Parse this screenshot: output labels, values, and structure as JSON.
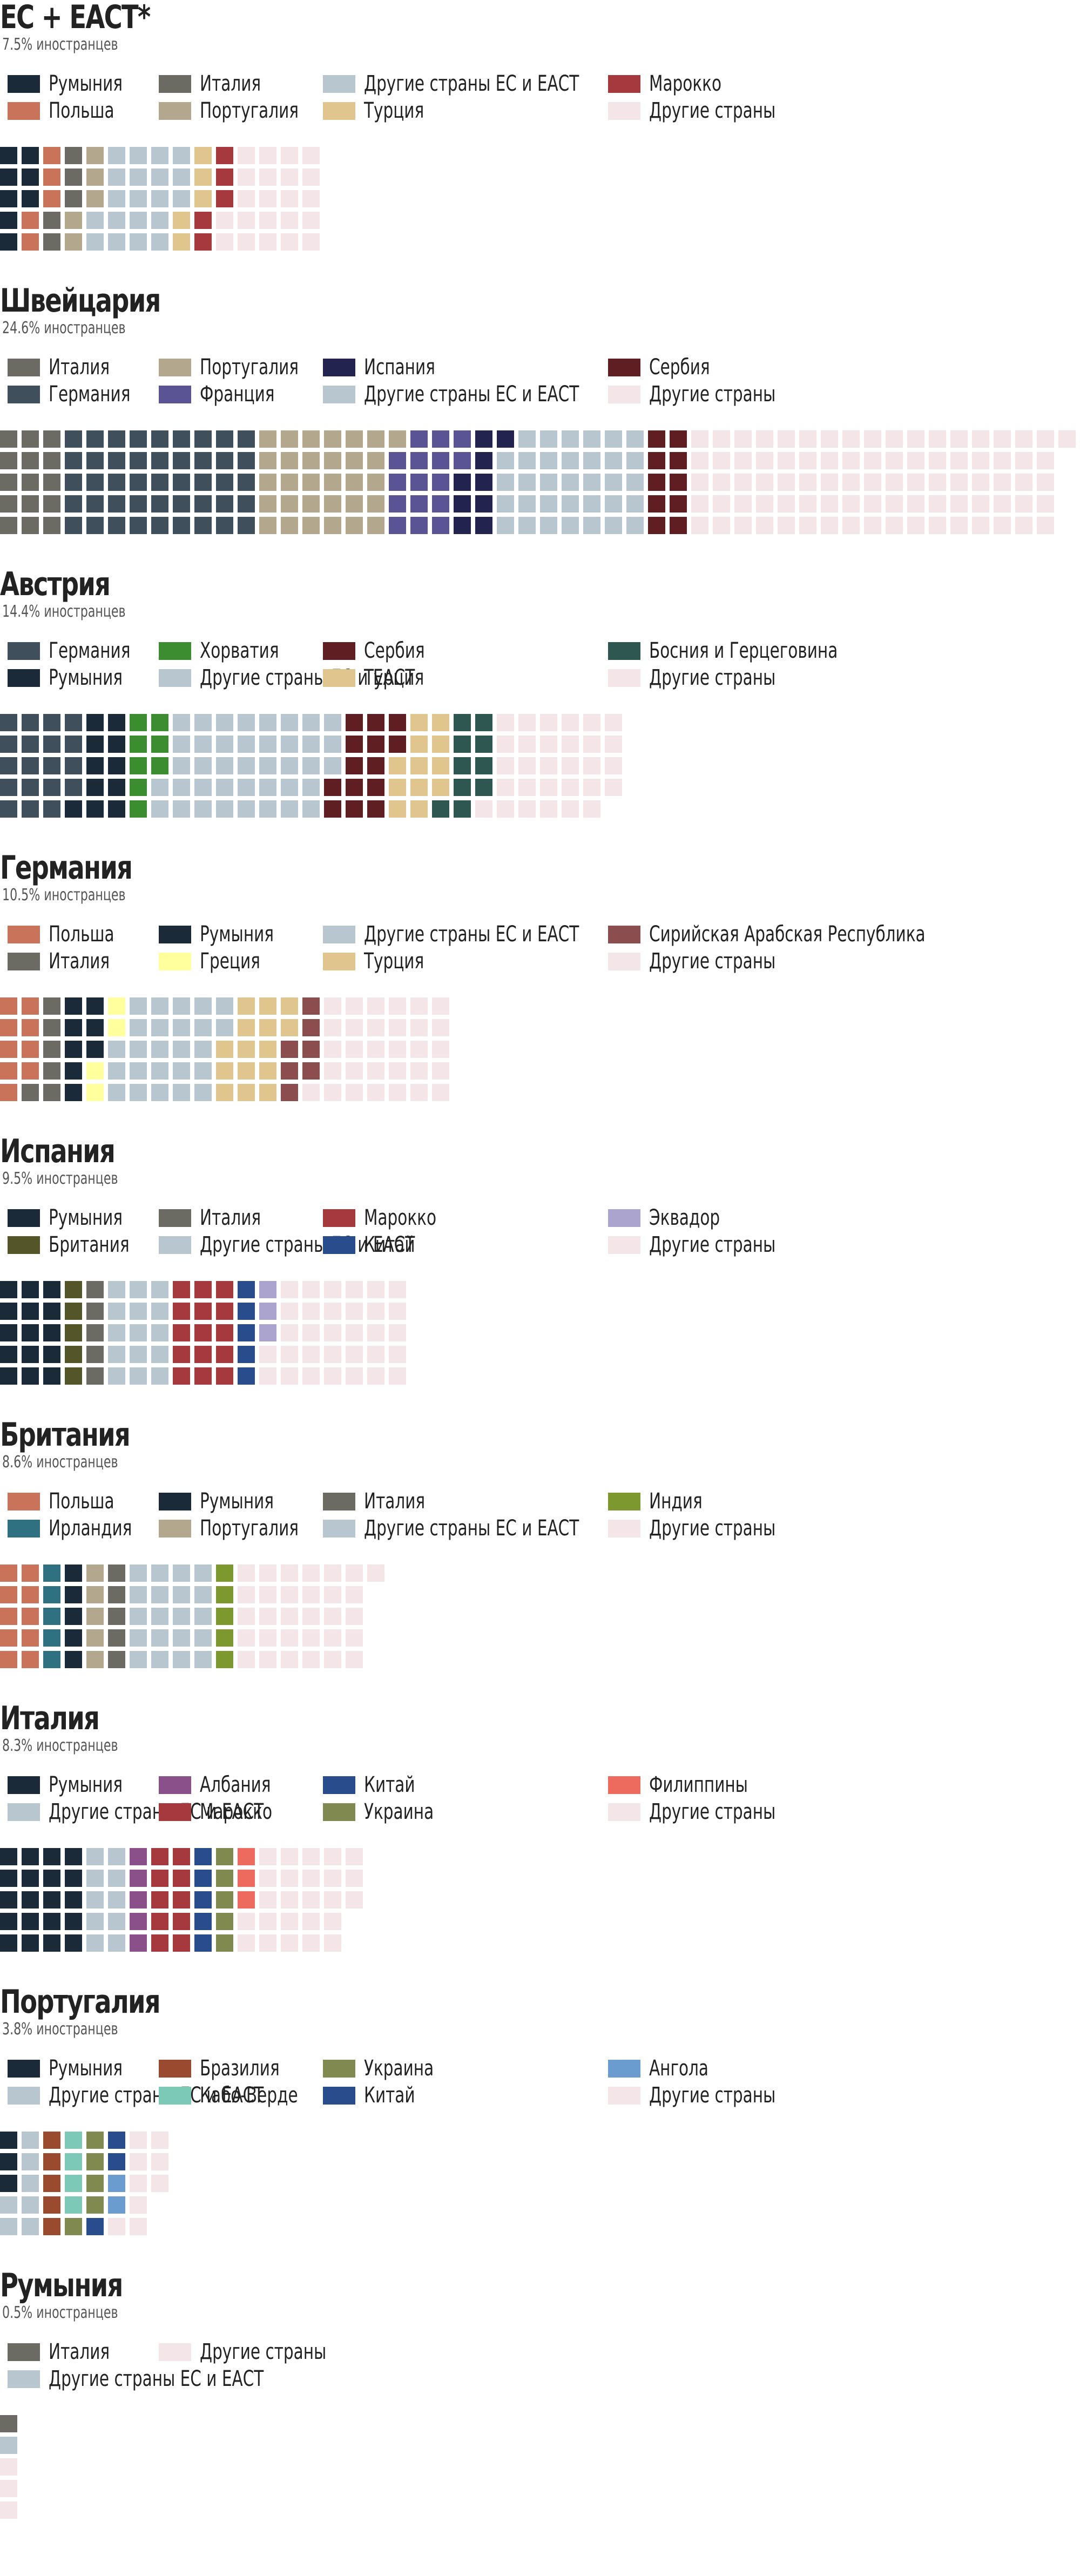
{
  "chart_data": {
    "type": "waffle",
    "unit_note": "each square = 1 per mille (0.1%) of the population",
    "palette": {
      "Румыния": "#1b2a38",
      "Польша": "#c8735a",
      "Италия": "#6b6b63",
      "Португалия": "#b3a88e",
      "Другие страны ЕС и ЕАСТ": "#b8c6cf",
      "Турция": "#e0c58f",
      "Марокко": "#a5393d",
      "Другие страны": "#f4e6e8",
      "Германия": "#3f505c",
      "Испания": "#23234f",
      "Франция": "#5a5495",
      "Сербия": "#5f1f22",
      "Хорватия": "#3b8d2f",
      "Босния и Герцеговина": "#2e5752",
      "Греция": "#ffff9e",
      "Сирийская Арабская Республика": "#8c4d4f",
      "Британия": "#545528",
      "Китай": "#284c8c",
      "Эквадор": "#aba4cf",
      "Ирландия": "#2f7180",
      "Индия": "#7c982f",
      "Албания": "#8a508a",
      "Украина": "#80894f",
      "Филиппины": "#ec6a5e",
      "Бразилия": "#9a4a2f",
      "Кабо-Верде": "#7dc9b7",
      "Ангола": "#6b9ccf"
    },
    "charts": [
      {
        "title": "ЕС + ЕАСТ*",
        "subtitle": "7.5% иностранцев",
        "legend_columns": [
          [
            "Румыния",
            "Польша"
          ],
          [
            "Италия",
            "Португалия"
          ],
          [
            "Другие страны ЕС и ЕАСТ",
            "Турция"
          ],
          [
            "Марокко",
            "Другие страны"
          ]
        ],
        "series": [
          {
            "name": "Румыния",
            "value": 8
          },
          {
            "name": "Польша",
            "value": 5
          },
          {
            "name": "Италия",
            "value": 5
          },
          {
            "name": "Португалия",
            "value": 5
          },
          {
            "name": "Другие страны ЕС и ЕАСТ",
            "value": 20
          },
          {
            "name": "Турция",
            "value": 5
          },
          {
            "name": "Марокко",
            "value": 5
          },
          {
            "name": "Другие страны",
            "value": 22
          }
        ]
      },
      {
        "title": "Швейцария",
        "subtitle": "24.6% иностранцев",
        "legend_columns": [
          [
            "Италия",
            "Германия"
          ],
          [
            "Португалия",
            "Франция"
          ],
          [
            "Испания",
            "Другие страны ЕС и ЕАСТ"
          ],
          [
            "Сербия",
            "Другие страны"
          ]
        ],
        "series": [
          {
            "name": "Италия",
            "value": 15
          },
          {
            "name": "Германия",
            "value": 45
          },
          {
            "name": "Португалия",
            "value": 31
          },
          {
            "name": "Франция",
            "value": 16
          },
          {
            "name": "Испания",
            "value": 9
          },
          {
            "name": "Другие страны ЕС и ЕАСТ",
            "value": 34
          },
          {
            "name": "Сербия",
            "value": 10
          },
          {
            "name": "Другие страны",
            "value": 86
          }
        ]
      },
      {
        "title": "Австрия",
        "subtitle": "14.4% иностранцев",
        "legend_columns": [
          [
            "Германия",
            "Румыния"
          ],
          [
            "Хорватия",
            "Другие страны ЕС и ЕАСТ"
          ],
          [
            "Сербия",
            "Турция"
          ],
          [
            "Босния и Герцеговина",
            "Другие страны"
          ]
        ],
        "series": [
          {
            "name": "Германия",
            "value": 19
          },
          {
            "name": "Румыния",
            "value": 11
          },
          {
            "name": "Хорватия",
            "value": 8
          },
          {
            "name": "Другие страны ЕС и ЕАСТ",
            "value": 40
          },
          {
            "name": "Сербия",
            "value": 14
          },
          {
            "name": "Турция",
            "value": 12
          },
          {
            "name": "Босния и Герцеговина",
            "value": 10
          },
          {
            "name": "Другие страны",
            "value": 30
          }
        ]
      },
      {
        "title": "Германия",
        "subtitle": "10.5% иностранцев",
        "legend_columns": [
          [
            "Польша",
            "Италия"
          ],
          [
            "Румыния",
            "Греция"
          ],
          [
            "Другие страны ЕС и ЕАСТ",
            "Турция"
          ],
          [
            "Сирийская Арабская Республика",
            "Другие страны"
          ]
        ],
        "series": [
          {
            "name": "Польша",
            "value": 9
          },
          {
            "name": "Италия",
            "value": 6
          },
          {
            "name": "Румыния",
            "value": 8
          },
          {
            "name": "Греция",
            "value": 4
          },
          {
            "name": "Другие страны ЕС и ЕАСТ",
            "value": 25
          },
          {
            "name": "Турция",
            "value": 15
          },
          {
            "name": "Сирийская Арабская Республика",
            "value": 7
          },
          {
            "name": "Другие страны",
            "value": 31
          }
        ]
      },
      {
        "title": "Испания",
        "subtitle": "9.5% иностранцев",
        "legend_columns": [
          [
            "Румыния",
            "Британия"
          ],
          [
            "Италия",
            "Другие страны ЕС и ЕАСТ"
          ],
          [
            "Марокко",
            "Китай"
          ],
          [
            "Эквадор",
            "Другие страны"
          ]
        ],
        "series": [
          {
            "name": "Румыния",
            "value": 15
          },
          {
            "name": "Британия",
            "value": 5
          },
          {
            "name": "Италия",
            "value": 5
          },
          {
            "name": "Другие страны ЕС и ЕАСТ",
            "value": 15
          },
          {
            "name": "Марокко",
            "value": 15
          },
          {
            "name": "Китай",
            "value": 5
          },
          {
            "name": "Эквадор",
            "value": 3
          },
          {
            "name": "Другие страны",
            "value": 32
          }
        ]
      },
      {
        "title": "Британия",
        "subtitle": "8.6% иностранцев",
        "legend_columns": [
          [
            "Польша",
            "Ирландия"
          ],
          [
            "Румыния",
            "Португалия"
          ],
          [
            "Италия",
            "Другие страны ЕС и ЕАСТ"
          ],
          [
            "Индия",
            "Другие страны"
          ]
        ],
        "series": [
          {
            "name": "Польша",
            "value": 10
          },
          {
            "name": "Ирландия",
            "value": 5
          },
          {
            "name": "Румыния",
            "value": 5
          },
          {
            "name": "Португалия",
            "value": 5
          },
          {
            "name": "Италия",
            "value": 5
          },
          {
            "name": "Другие страны ЕС и ЕАСТ",
            "value": 20
          },
          {
            "name": "Индия",
            "value": 5
          },
          {
            "name": "Другие страны",
            "value": 31
          }
        ]
      },
      {
        "title": "Италия",
        "subtitle": "8.3% иностранцев",
        "legend_columns": [
          [
            "Румыния",
            "Другие страны ЕС и ЕАСТ"
          ],
          [
            "Албания",
            "Марокко"
          ],
          [
            "Китай",
            "Украина"
          ],
          [
            "Филиппины",
            "Другие страны"
          ]
        ],
        "series": [
          {
            "name": "Румыния",
            "value": 20
          },
          {
            "name": "Другие страны ЕС и ЕАСТ",
            "value": 10
          },
          {
            "name": "Албания",
            "value": 5
          },
          {
            "name": "Марокко",
            "value": 10
          },
          {
            "name": "Китай",
            "value": 5
          },
          {
            "name": "Украина",
            "value": 5
          },
          {
            "name": "Филиппины",
            "value": 3
          },
          {
            "name": "Другие страны",
            "value": 25
          }
        ]
      },
      {
        "title": "Португалия",
        "subtitle": "3.8% иностранцев",
        "legend_columns": [
          [
            "Румыния",
            "Другие страны ЕС и ЕАСТ"
          ],
          [
            "Бразилия",
            "Кабо-Верде"
          ],
          [
            "Украина",
            "Китай"
          ],
          [
            "Ангола",
            "Другие страны"
          ]
        ],
        "series": [
          {
            "name": "Румыния",
            "value": 3
          },
          {
            "name": "Другие страны ЕС и ЕАСТ",
            "value": 7
          },
          {
            "name": "Бразилия",
            "value": 5
          },
          {
            "name": "Кабо-Верде",
            "value": 4
          },
          {
            "name": "Украина",
            "value": 5
          },
          {
            "name": "Китай",
            "value": 3
          },
          {
            "name": "Ангола",
            "value": 2
          },
          {
            "name": "Другие страны",
            "value": 9
          }
        ]
      },
      {
        "title": "Румыния",
        "subtitle": "0.5% иностранцев",
        "legend_columns": [
          [
            "Италия",
            "Другие страны ЕС и ЕАСТ"
          ],
          [
            "Другие страны"
          ]
        ],
        "series": [
          {
            "name": "Италия",
            "value": 1
          },
          {
            "name": "Другие страны ЕС и ЕАСТ",
            "value": 1
          },
          {
            "name": "Другие страны",
            "value": 3
          }
        ]
      }
    ]
  }
}
